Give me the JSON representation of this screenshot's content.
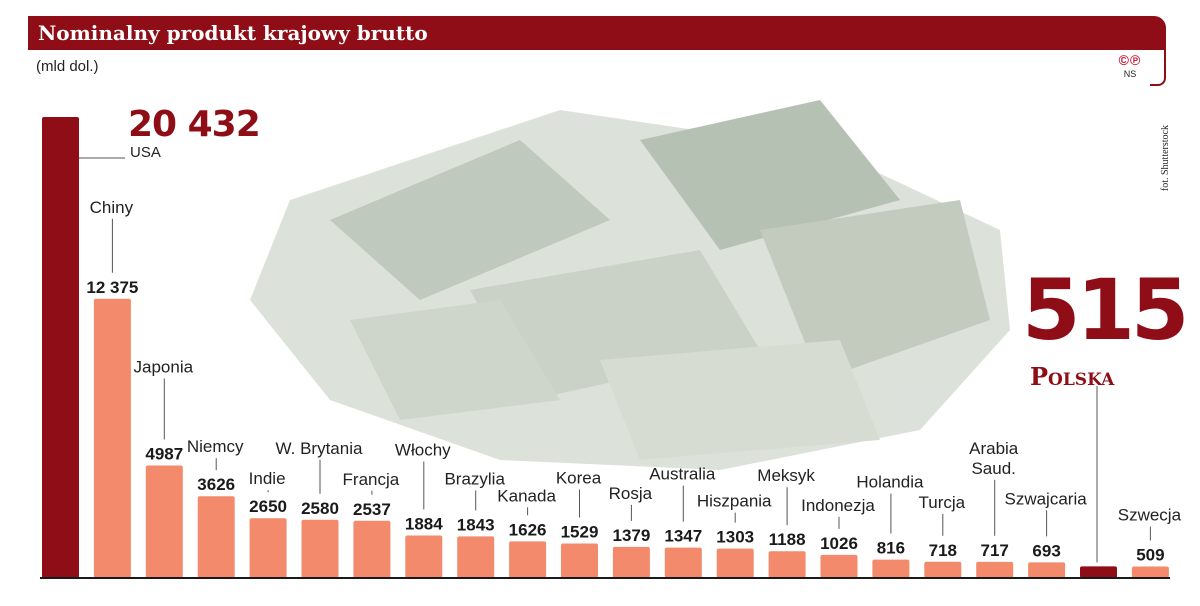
{
  "header": {
    "title": "Nominalny produkt krajowy brutto",
    "subtitle": "(mld dol.)"
  },
  "logo": {
    "marks": "©℗",
    "initials": "NS"
  },
  "photo_credit": "fot. Shutterstock",
  "colors": {
    "highlight": "#8e0d16",
    "bar": "#f28a6b",
    "axis": "#1a1a1a",
    "leader": "#555555"
  },
  "chart_data": {
    "type": "bar",
    "title": "Nominalny produkt krajowy brutto",
    "subtitle": "(mld dol.)",
    "xlabel": "",
    "ylabel": "",
    "ylim": [
      0,
      20432
    ],
    "grid": false,
    "legend": "none",
    "categories": [
      "USA",
      "Chiny",
      "Japonia",
      "Niemcy",
      "Indie",
      "W. Brytania",
      "Francja",
      "Włochy",
      "Brazylia",
      "Kanada",
      "Korea",
      "Rosja",
      "Australia",
      "Hiszpania",
      "Meksyk",
      "Indonezja",
      "Holandia",
      "Turcja",
      "Arabia Saud.",
      "Szwajcaria",
      "Polska",
      "Szwecja"
    ],
    "values": [
      20432,
      12375,
      4987,
      3626,
      2650,
      2580,
      2537,
      1884,
      1843,
      1626,
      1529,
      1379,
      1347,
      1303,
      1188,
      1026,
      816,
      718,
      717,
      693,
      515,
      509
    ],
    "value_labels": [
      "20 432",
      "12 375",
      "4987",
      "3626",
      "2650",
      "2580",
      "2537",
      "1884",
      "1843",
      "1626",
      "1529",
      "1379",
      "1347",
      "1303",
      "1188",
      "1026",
      "816",
      "718",
      "717",
      "693",
      "515",
      "509"
    ],
    "highlighted": [
      "USA",
      "Polska"
    ]
  },
  "callouts": {
    "usa": {
      "value": "20 432",
      "label": "USA"
    },
    "polska": {
      "value": "515",
      "label": "Polska"
    }
  }
}
